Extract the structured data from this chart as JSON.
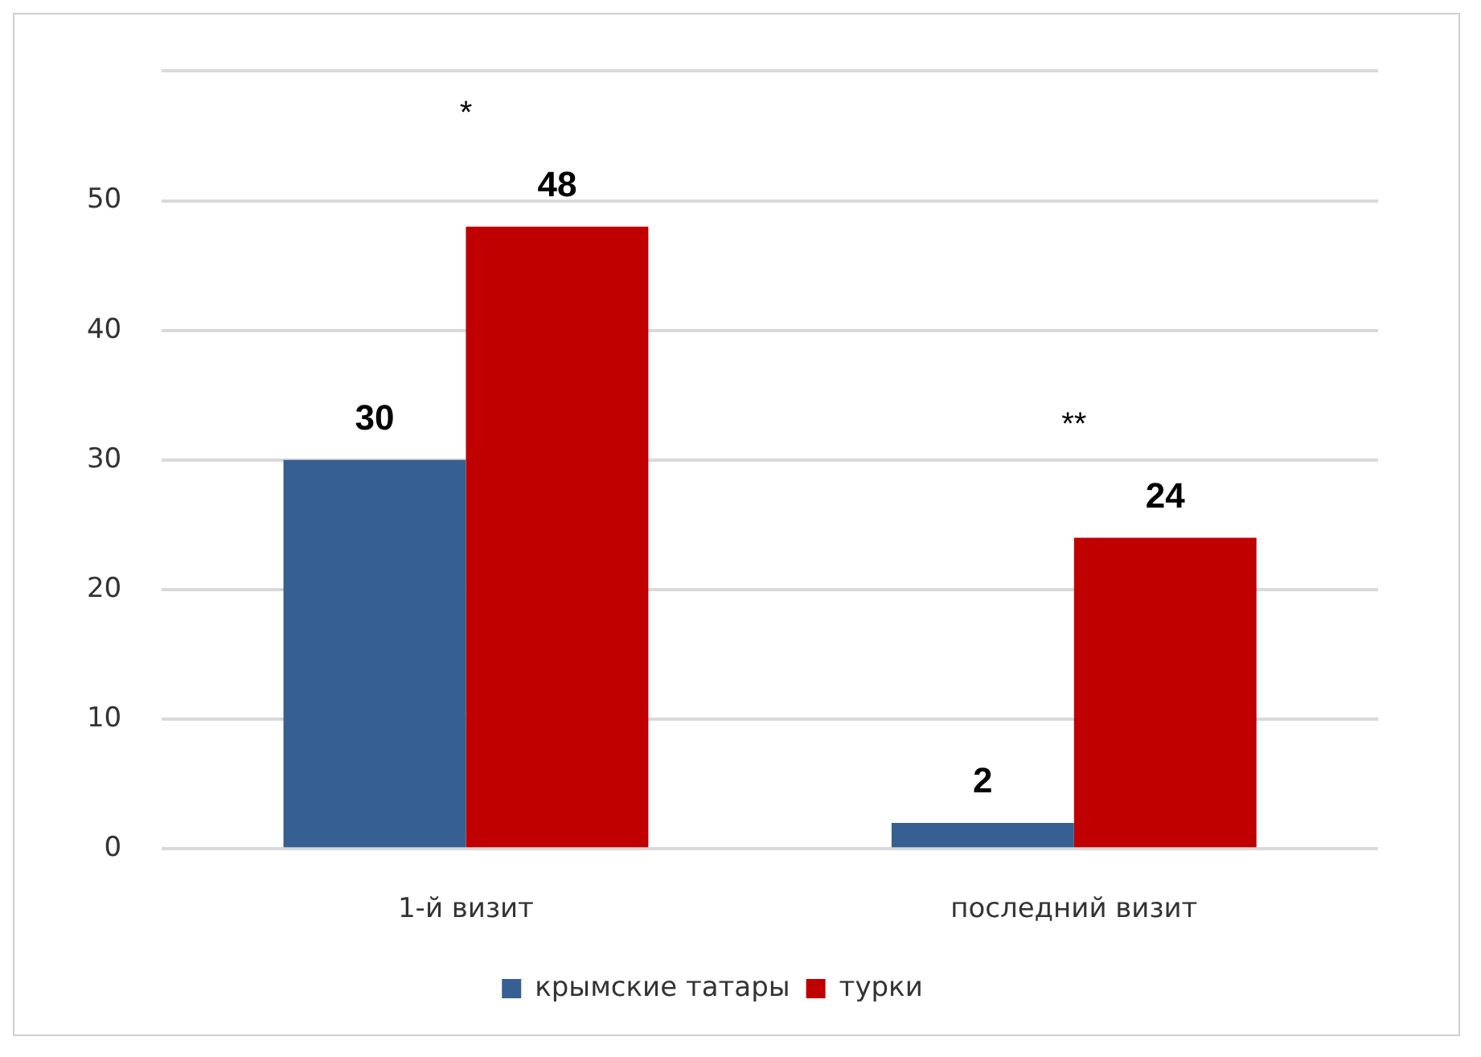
{
  "chart_data": {
    "type": "bar",
    "categories": [
      "1-й визит",
      "последний визит"
    ],
    "series": [
      {
        "name": "крымские татары",
        "color": "#376092",
        "values": [
          30,
          2
        ]
      },
      {
        "name": "турки",
        "color": "#c00000",
        "values": [
          48,
          24
        ]
      }
    ],
    "ylim": [
      0,
      60
    ],
    "yticks": [
      0,
      10,
      20,
      30,
      40,
      50,
      {
        "value": 60,
        "label": null
      }
    ],
    "grid": "y",
    "legend": "bottom",
    "data_labels": true,
    "annotations": [
      "*",
      "**"
    ]
  }
}
